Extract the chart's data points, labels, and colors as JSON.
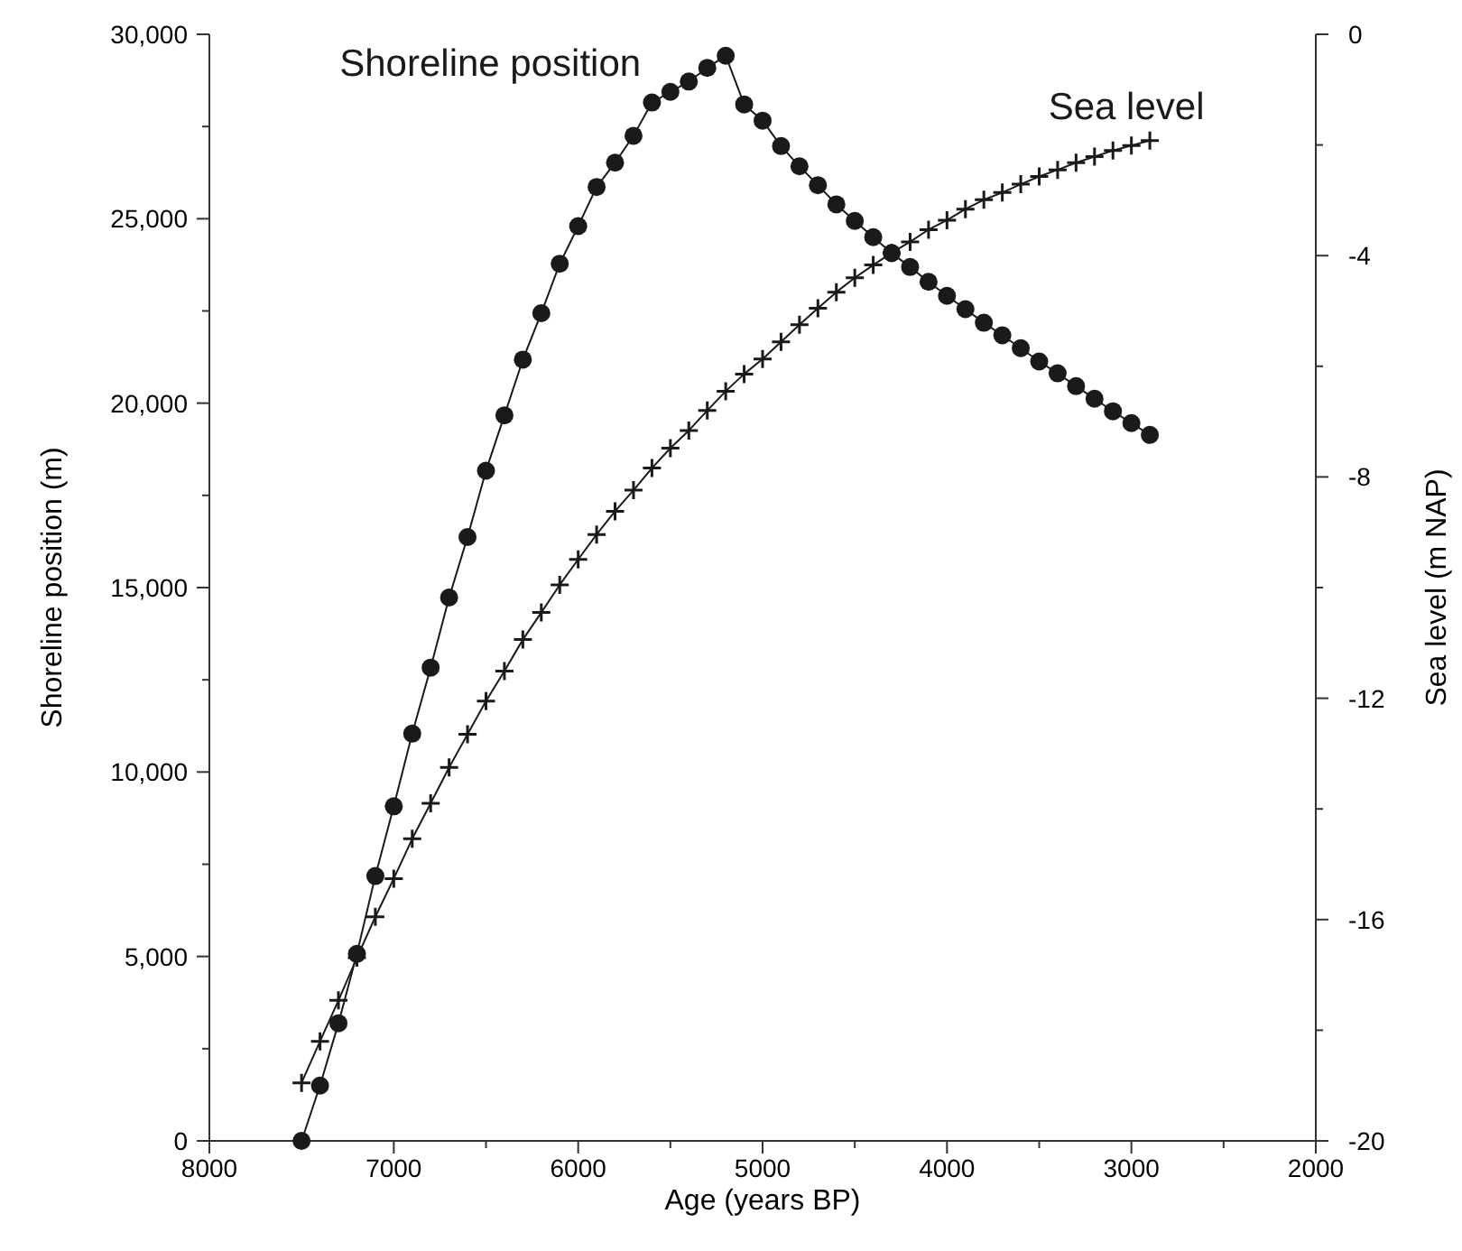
{
  "chart_data": {
    "type": "line",
    "xlabel": "Age (years BP)",
    "ylabel": "Shoreline position (m)",
    "y2label": "Sea level (m NAP)",
    "xlim": [
      8000,
      2000
    ],
    "xticks": [
      8000,
      {
        "value": 7500,
        "label": null
      },
      7000,
      {
        "value": 6500,
        "label": null
      },
      6000,
      {
        "value": 5500,
        "label": null
      },
      5000,
      {
        "value": 4500,
        "label": null
      },
      4000,
      {
        "value": 3500,
        "label": null
      },
      3000,
      {
        "value": 2500,
        "label": null
      },
      2000
    ],
    "ylim": [
      0,
      30000
    ],
    "yticks": [
      0,
      {
        "value": 2500,
        "label": null
      },
      {
        "value": 5000,
        "label": "5,000"
      },
      {
        "value": 7500,
        "label": null
      },
      {
        "value": 10000,
        "label": "10,000"
      },
      {
        "value": 12500,
        "label": null
      },
      {
        "value": 15000,
        "label": "15,000"
      },
      {
        "value": 17500,
        "label": null
      },
      {
        "value": 20000,
        "label": "20,000"
      },
      {
        "value": 22500,
        "label": null
      },
      {
        "value": 25000,
        "label": "25,000"
      },
      {
        "value": 27500,
        "label": null
      },
      {
        "value": 30000,
        "label": "30,000"
      }
    ],
    "y2lim": [
      -20,
      0
    ],
    "y2ticks": [
      -20,
      {
        "value": -18,
        "label": null
      },
      -16,
      {
        "value": -14,
        "label": null
      },
      -12,
      {
        "value": -10,
        "label": null
      },
      -8,
      {
        "value": -6,
        "label": null
      },
      -4,
      {
        "value": -2,
        "label": null
      },
      0
    ],
    "line_style": "solid",
    "series": [
      {
        "name": "Shoreline position",
        "color": "#1a1a1a",
        "marker": "circle",
        "x": [
          7500,
          7400,
          7300,
          7200,
          7100,
          7000,
          6900,
          6800,
          6700,
          6600,
          6500,
          6400,
          6300,
          6200,
          6100,
          6000,
          5900,
          5800,
          5700,
          5600,
          5500,
          5400,
          5300,
          5200,
          5100,
          5000,
          4900,
          4800,
          4700,
          4600,
          4500,
          4400,
          4300,
          4200,
          4100,
          4000,
          3900,
          3800,
          3700,
          3600,
          3500,
          3400,
          3300,
          3200,
          3100,
          3000,
          2900
        ],
        "values": [
          0,
          1500,
          3190,
          5070,
          7180,
          9070,
          11040,
          12830,
          14730,
          16370,
          18170,
          19670,
          21180,
          22440,
          23780,
          24800,
          25860,
          26520,
          27250,
          28150,
          28440,
          28720,
          29090,
          29420,
          28100,
          27660,
          26970,
          26420,
          25910,
          25390,
          24940,
          24500,
          24070,
          23690,
          23290,
          22910,
          22550,
          22180,
          21840,
          21490,
          21130,
          20810,
          20460,
          20120,
          19780,
          19460,
          19140
        ]
      },
      {
        "name": "Sea level",
        "color": "#1a1a1a",
        "marker": "cross",
        "axis": "y2",
        "x": [
          7500,
          7400,
          7300,
          7200,
          7100,
          7000,
          6900,
          6800,
          6700,
          6600,
          6500,
          6400,
          6300,
          6200,
          6100,
          6000,
          5900,
          5800,
          5700,
          5600,
          5500,
          5400,
          5300,
          5200,
          5100,
          5000,
          4900,
          4800,
          4700,
          4600,
          4500,
          4400,
          4300,
          4200,
          4100,
          4000,
          3900,
          3800,
          3700,
          3600,
          3500,
          3400,
          3300,
          3200,
          3100,
          3000,
          2900
        ],
        "values": [
          -18.95,
          -18.2,
          -17.46,
          -16.69,
          -15.95,
          -15.26,
          -14.54,
          -13.9,
          -13.25,
          -12.65,
          -12.05,
          -11.51,
          -10.94,
          -10.45,
          -9.95,
          -9.49,
          -9.04,
          -8.62,
          -8.24,
          -7.84,
          -7.48,
          -7.16,
          -6.8,
          -6.45,
          -6.14,
          -5.87,
          -5.56,
          -5.25,
          -4.95,
          -4.66,
          -4.4,
          -4.17,
          -3.95,
          -3.75,
          -3.53,
          -3.36,
          -3.16,
          -2.99,
          -2.86,
          -2.71,
          -2.57,
          -2.45,
          -2.32,
          -2.21,
          -2.1,
          -2.01,
          -1.92
        ]
      }
    ]
  }
}
